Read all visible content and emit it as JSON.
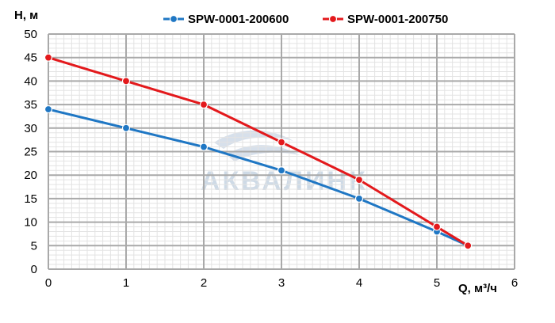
{
  "chart_data": {
    "type": "line",
    "ylabel": "H, м",
    "xlabel": "Q, м³/ч",
    "xlim": [
      0,
      6
    ],
    "ylim": [
      0,
      50
    ],
    "x_ticks": [
      "0",
      "1",
      "2",
      "3",
      "4",
      "5",
      "6"
    ],
    "y_ticks": [
      "0",
      "5",
      "10",
      "15",
      "20",
      "25",
      "30",
      "35",
      "40",
      "45",
      "50"
    ],
    "grid": true,
    "legend_position": "top",
    "watermark": "АКВАЛИНК",
    "series": [
      {
        "name": "SPW-0001-200600",
        "color": "#1f77c4",
        "points": [
          [
            0,
            34
          ],
          [
            1,
            30
          ],
          [
            2,
            26
          ],
          [
            3,
            21
          ],
          [
            4,
            15
          ],
          [
            5,
            8
          ],
          [
            5.4,
            5
          ]
        ]
      },
      {
        "name": "SPW-0001-200750",
        "color": "#e3191c",
        "points": [
          [
            0,
            45
          ],
          [
            1,
            40
          ],
          [
            2,
            35
          ],
          [
            3,
            27
          ],
          [
            4,
            19
          ],
          [
            5,
            9
          ],
          [
            5.4,
            5
          ]
        ]
      }
    ]
  }
}
